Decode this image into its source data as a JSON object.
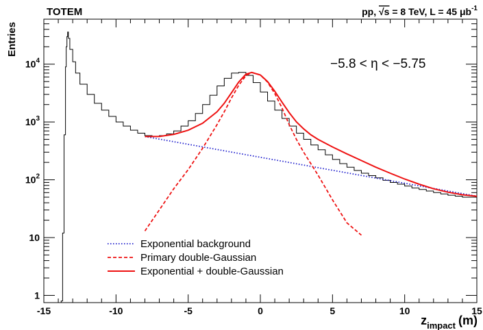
{
  "header": {
    "experiment": "TOTEM",
    "run_info": {
      "prefix": "pp,",
      "sqrt": "√s",
      "energy": "= 8 TeV,",
      "lumi_prefix": "L = 45",
      "mu": "μ",
      "unit": "b",
      "unit_exp": "-1"
    }
  },
  "annotation": "−5.8 < η < −5.75",
  "chart_data": {
    "type": "line",
    "ylabel": "Entries",
    "xlabel": {
      "main": "z",
      "sub": "impact",
      "unit": "(m)"
    },
    "xlim": [
      -15,
      15
    ],
    "ylim": [
      0.75,
      60000
    ],
    "yscale": "log",
    "x_ticks": [
      "-15",
      "-10",
      "-5",
      "0",
      "5",
      "10",
      "15"
    ],
    "y_ticks": [
      {
        "value": 1,
        "base": "1",
        "exp": ""
      },
      {
        "value": 10,
        "base": "10",
        "exp": ""
      },
      {
        "value": 100,
        "base": "10",
        "exp": "2"
      },
      {
        "value": 1000,
        "base": "10",
        "exp": "3"
      },
      {
        "value": 10000,
        "base": "10",
        "exp": "4"
      }
    ],
    "data_histogram": {
      "name": "data",
      "color": "#000000",
      "x": [
        -13.8,
        -13.7,
        -13.6,
        -13.5,
        -13.45,
        -13.4,
        -13.35,
        -13.3,
        -13.2,
        -13.0,
        -12.8,
        -12.5,
        -12.0,
        -11.5,
        -11.0,
        -10.5,
        -10.0,
        -9.5,
        -9.0,
        -8.5,
        -8.0,
        -7.5,
        -7.0,
        -6.5,
        -6.0,
        -5.5,
        -5.0,
        -4.5,
        -4.0,
        -3.5,
        -3.0,
        -2.5,
        -2.0,
        -1.5,
        -1.0,
        -0.5,
        0.0,
        0.5,
        1.0,
        1.5,
        2.0,
        2.5,
        3.0,
        3.5,
        4.0,
        4.5,
        5.0,
        5.5,
        6.0,
        6.5,
        7.0,
        7.5,
        8.0,
        8.5,
        9.0,
        9.5,
        10.0,
        10.5,
        11.0,
        11.5,
        12.0,
        12.5,
        13.0,
        13.5,
        14.0,
        14.5,
        15.0
      ],
      "y": [
        0.8,
        12,
        600,
        9000,
        20000,
        30000,
        36000,
        28000,
        18000,
        11000,
        7000,
        4500,
        3000,
        2100,
        1600,
        1250,
        1000,
        850,
        720,
        640,
        580,
        560,
        580,
        620,
        700,
        850,
        1050,
        1400,
        2000,
        2900,
        4200,
        5700,
        7000,
        7200,
        6400,
        4800,
        3300,
        2300,
        1600,
        1150,
        850,
        640,
        500,
        400,
        330,
        270,
        225,
        190,
        165,
        145,
        130,
        118,
        108,
        98,
        90,
        84,
        78,
        72,
        68,
        64,
        60,
        57,
        54,
        52,
        50,
        50,
        52
      ]
    },
    "series": [
      {
        "name": "Exponential background",
        "style": "dotted",
        "color": "#1a1acc",
        "x": [
          -8,
          15
        ],
        "y": [
          560,
          52
        ]
      },
      {
        "name": "Primary double-Gaussian",
        "style": "dashed",
        "color": "#ee1111",
        "x": [
          -8,
          -7,
          -6,
          -5,
          -4,
          -3,
          -2.5,
          -2,
          -1.5,
          -1,
          -0.6,
          0,
          0.5,
          1,
          1.5,
          2,
          2.5,
          3,
          4,
          5,
          6,
          7
        ],
        "y": [
          13,
          30,
          70,
          150,
          350,
          900,
          1500,
          2600,
          4300,
          6300,
          7200,
          6500,
          4900,
          3100,
          1750,
          900,
          500,
          300,
          120,
          45,
          18,
          11
        ]
      },
      {
        "name": "Exponential + double-Gaussian",
        "style": "solid",
        "color": "#ee1111",
        "x": [
          -8,
          -7,
          -6,
          -5,
          -4,
          -3,
          -2.5,
          -2,
          -1.5,
          -1,
          -0.6,
          0,
          0.5,
          1,
          1.5,
          2,
          2.5,
          3,
          3.5,
          4,
          5,
          6,
          7,
          8,
          9,
          10,
          11,
          12,
          13,
          14,
          15
        ],
        "y": [
          560,
          560,
          610,
          720,
          950,
          1500,
          2100,
          3200,
          4900,
          6700,
          7200,
          6500,
          5000,
          3400,
          2200,
          1450,
          1000,
          760,
          600,
          500,
          370,
          280,
          215,
          165,
          130,
          103,
          84,
          70,
          61,
          55,
          52
        ]
      }
    ],
    "legend": {
      "placement": "bottom-center",
      "items": [
        {
          "label": "Exponential background",
          "style": "dotted",
          "color": "#1a1acc"
        },
        {
          "label": "Primary double-Gaussian",
          "style": "dashed",
          "color": "#ee1111"
        },
        {
          "label": "Exponential + double-Gaussian",
          "style": "solid",
          "color": "#ee1111"
        }
      ]
    }
  }
}
